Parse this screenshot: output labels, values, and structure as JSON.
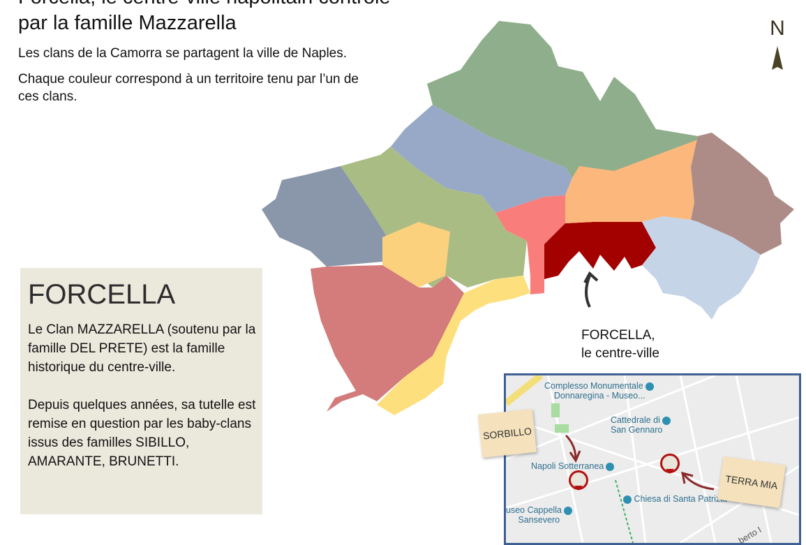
{
  "header": {
    "title_line1": "Forcella, le centre-ville napolitain contrôlé",
    "title_line2": "par la famille Mazzarella",
    "intro": [
      "Les clans de la Camorra se partagent la ville de Naples.",
      "Chaque couleur correspond à un territoire tenu par l’un de ces clans."
    ]
  },
  "compass": {
    "label": "N",
    "icon": "north-arrow-icon"
  },
  "info_box": {
    "heading": "FORCELLA",
    "paragraphs": [
      "Le Clan MAZZARELLA (soutenu par la famille DEL PRETE) est la famille historique du centre-ville.",
      "Depuis quelques années, sa tutelle est remise en question par les baby-clans issus des familles SIBILLO, AMARANTE, BRUNETTI."
    ]
  },
  "map": {
    "callout": [
      "FORCELLA,",
      "le centre-ville"
    ],
    "territory_colors": {
      "north": "#8fae8c",
      "center_north": "#98a9c8",
      "west_green": "#a9bc84",
      "west_slate": "#8a97aa",
      "southwest": "#d47b7b",
      "hexagon": "#fbd17e",
      "coast": "#fde07d",
      "pink": "#f87d7b",
      "forcella": "#a30000",
      "orange": "#fcb87c",
      "east_mauve": "#ad8c88",
      "port_blue": "#c6d4e8"
    }
  },
  "inset": {
    "pois": [
      "Complesso Monumentale",
      "Donnaregina - Museo...",
      "Cattedrale di",
      "San Gennaro",
      "Napoli Sotterranea",
      "Chiesa di Santa Patrizia",
      "useo Cappella",
      "Sansevero",
      "berto I"
    ],
    "notes": [
      "SORBILLO",
      "TERRA MIA"
    ]
  }
}
